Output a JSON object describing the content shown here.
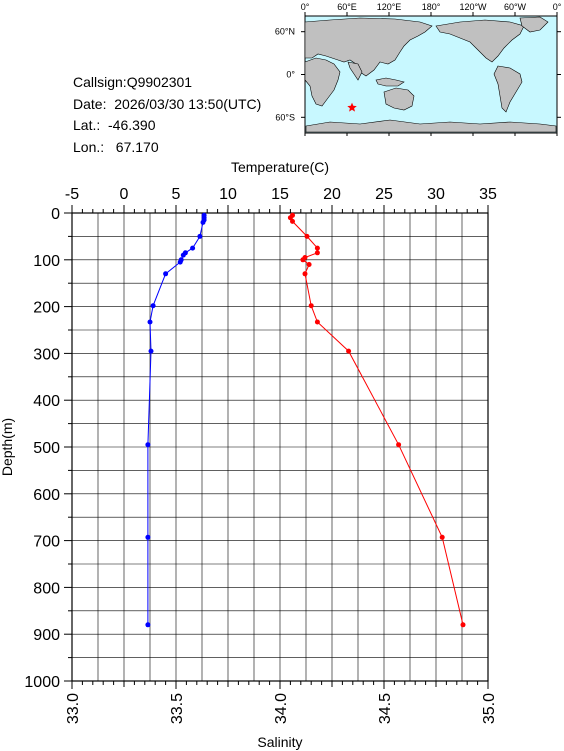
{
  "info": {
    "callsign": "Callsign:Q9902301",
    "date": "Date:  2026/03/30 13:50(UTC)",
    "lat": "Lat.:  -46.390",
    "lon": "Lon.:   67.170"
  },
  "map": {
    "lon_labels": [
      "0°",
      "60°E",
      "120°E",
      "180°",
      "120°W",
      "60°W",
      "0°"
    ],
    "lat_labels": [
      "60°N",
      "0°",
      "60°S"
    ],
    "station": {
      "lon": 67.17,
      "lat": -46.39
    },
    "colors": {
      "ocean": "#c8f8ff",
      "land": "#c0c0c0",
      "station": "#ff0000"
    }
  },
  "chart_data": {
    "type": "line",
    "xlabel_top": "Temperature(C)",
    "xlabel_bottom": "Salinity",
    "ylabel": "Depth(m)",
    "temp_ticks": [
      "-5",
      "0",
      "5",
      "10",
      "15",
      "20",
      "25",
      "30",
      "35"
    ],
    "sal_ticks": [
      "33.0",
      "33.5",
      "34.0",
      "34.5",
      "35.0"
    ],
    "depth_ticks": [
      "0",
      "100",
      "200",
      "300",
      "400",
      "500",
      "600",
      "700",
      "800",
      "900",
      "1000"
    ],
    "temp_range": [
      -5,
      35
    ],
    "sal_range": [
      33.0,
      35.0
    ],
    "depth_range": [
      0,
      1000
    ],
    "series": [
      {
        "name": "Temperature",
        "color": "#0000ff",
        "axis": "temperature",
        "depth": [
          5,
          10,
          15,
          20,
          50,
          75,
          85,
          90,
          100,
          105,
          130,
          198,
          233,
          295,
          495,
          693,
          880
        ],
        "values": [
          7.7,
          7.7,
          7.7,
          7.6,
          7.3,
          6.6,
          5.9,
          5.7,
          5.5,
          5.4,
          4.0,
          2.8,
          2.5,
          2.6,
          2.3,
          2.3,
          2.3
        ]
      },
      {
        "name": "Salinity",
        "color": "#ff0000",
        "axis": "salinity",
        "depth": [
          5,
          10,
          18,
          50,
          75,
          85,
          95,
          100,
          110,
          130,
          198,
          233,
          295,
          495,
          693,
          880
        ],
        "values": [
          34.06,
          34.05,
          34.06,
          34.13,
          34.18,
          34.18,
          34.12,
          34.11,
          34.14,
          34.12,
          34.15,
          34.18,
          34.33,
          34.57,
          34.78,
          34.88
        ]
      }
    ]
  }
}
